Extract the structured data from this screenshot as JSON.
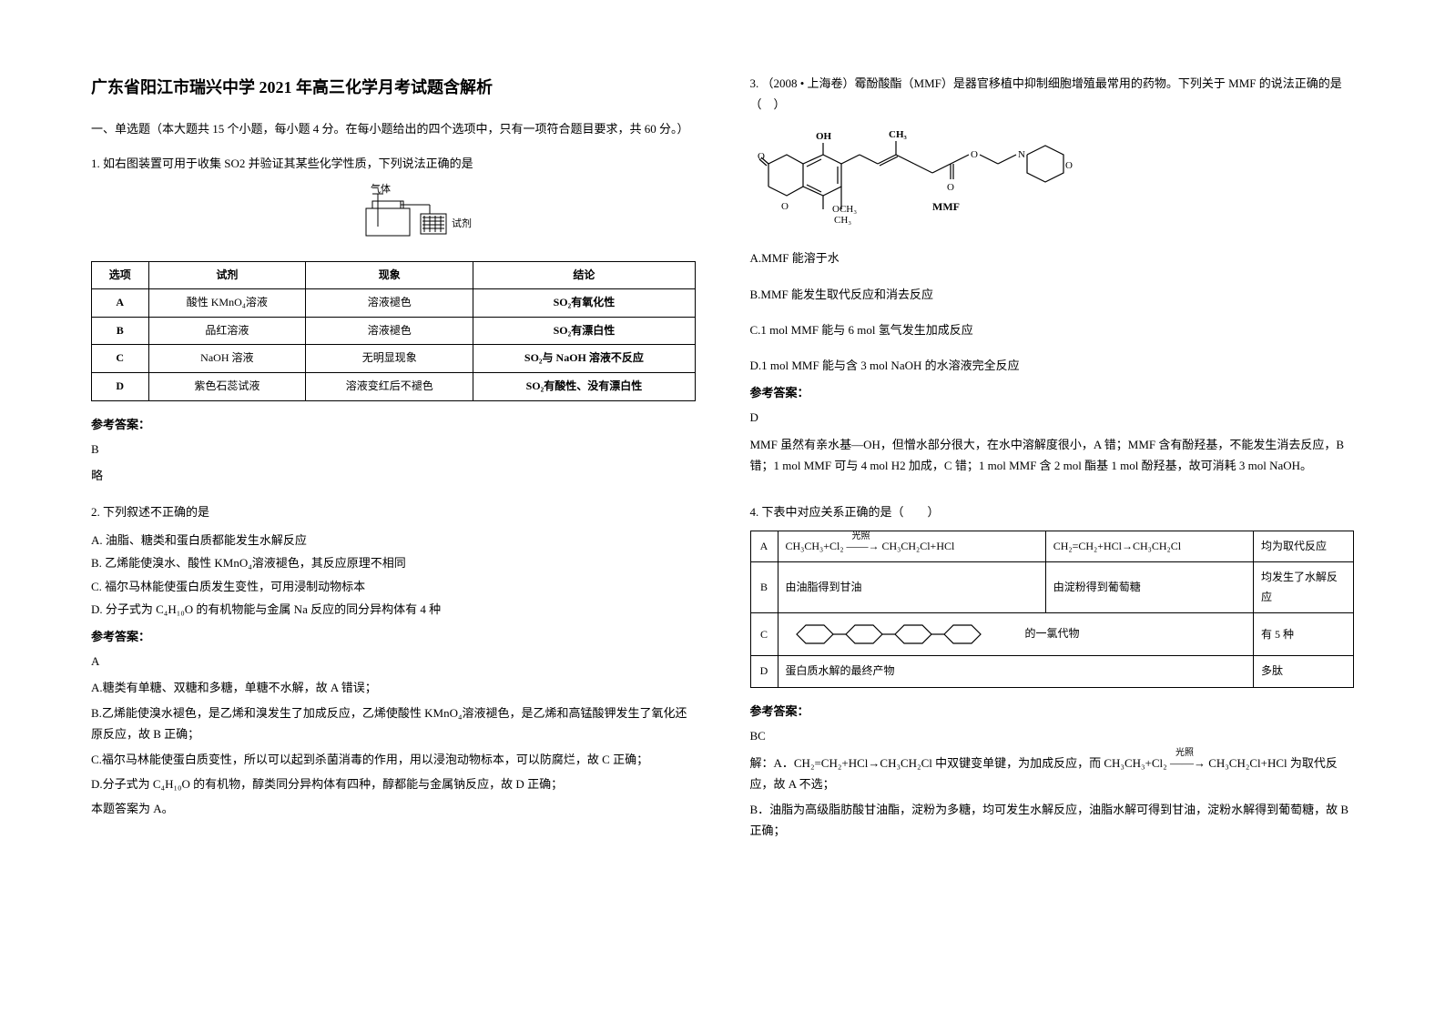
{
  "title": "广东省阳江市瑞兴中学 2021 年高三化学月考试题含解析",
  "section1_header": "一、单选题（本大题共 15 个小题，每小题 4 分。在每小题给出的四个选项中，只有一项符合题目要求，共 60 分。）",
  "q1": {
    "stem": "1. 如右图装置可用于收集 SO2 并验证其某些化学性质，下列说法正确的是",
    "fig_gas": "气体",
    "fig_reagent": "试剂",
    "table": {
      "headers": [
        "选项",
        "试剂",
        "现象",
        "结论"
      ],
      "rows": [
        [
          "A",
          "酸性 KMnO₄溶液",
          "溶液褪色",
          "SO₂有氧化性"
        ],
        [
          "B",
          "品红溶液",
          "溶液褪色",
          "SO₂有漂白性"
        ],
        [
          "C",
          "NaOH 溶液",
          "无明显现象",
          "SO₂与 NaOH 溶液不反应"
        ],
        [
          "D",
          "紫色石蕊试液",
          "溶液变红后不褪色",
          "SO₂有酸性、没有漂白性"
        ]
      ]
    },
    "ans_label": "参考答案：",
    "ans": "B",
    "brief": "略"
  },
  "q2": {
    "stem": "2. 下列叙述不正确的是",
    "opts": [
      "A. 油脂、糖类和蛋白质都能发生水解反应",
      "B. 乙烯能使溴水、酸性 KMnO₄溶液褪色，其反应原理不相同",
      "C. 福尔马林能使蛋白质发生变性，可用浸制动物标本",
      "D. 分子式为 C₄H₁₀O 的有机物能与金属 Na 反应的同分异构体有 4 种"
    ],
    "ans_label": "参考答案：",
    "ans": "A",
    "explains": [
      "A.糖类有单糖、双糖和多糖，单糖不水解，故 A 错误；",
      "B.乙烯能使溴水褪色，是乙烯和溴发生了加成反应，乙烯使酸性 KMnO₄溶液褪色，是乙烯和高锰酸钾发生了氧化还原反应，故 B 正确；",
      "C.福尔马林能使蛋白质变性，所以可以起到杀菌消毒的作用，用以浸泡动物标本，可以防腐烂，故 C 正确；",
      "D.分子式为 C₄H₁₀O 的有机物，醇类同分异构体有四种，醇都能与金属钠反应，故 D 正确；",
      "本题答案为 A。"
    ]
  },
  "q3": {
    "stem": "3. （2008 • 上海卷）霉酚酸酯（MMF）是器官移植中抑制细胞增殖最常用的药物。下列关于 MMF 的说法正确的是（　）",
    "mol_labels": {
      "oh": "OH",
      "ch3a": "CH₃",
      "och3": "OCH₃",
      "ch3b": "CH₃",
      "mmf": "MMF",
      "o": "O",
      "n": "N"
    },
    "opts": [
      "A.MMF 能溶于水",
      "B.MMF 能发生取代反应和消去反应",
      "C.1 mol MMF 能与 6 mol 氢气发生加成反应",
      "D.1 mol MMF 能与含 3 mol NaOH 的水溶液完全反应"
    ],
    "ans_label": "参考答案：",
    "ans": "D",
    "explain": "MMF 虽然有亲水基—OH，但憎水部分很大，在水中溶解度很小，A 错；MMF 含有酚羟基，不能发生消去反应，B 错；1 mol MMF 可与 4 mol H2 加成，C 错；1 mol MMF 含 2 mol 酯基 1 mol 酚羟基，故可消耗 3 mol NaOH。"
  },
  "q4": {
    "stem": "4. 下表中对应关系正确的是（　　）",
    "rows": [
      {
        "k": "A",
        "c1_html": "CH₃CH₃+Cl₂ <span style='position:relative'><span style='font-size:10px;position:absolute;top:-12px;left:6px;white-space:nowrap'>光照</span>——→</span> CH₃CH₂Cl+HCl",
        "c2": "CH₂=CH₂+HCl→CH₃CH₂Cl",
        "c3": "均为取代反应"
      },
      {
        "k": "B",
        "c1": "由油脂得到甘油",
        "c2": "由淀粉得到葡萄糖",
        "c3": "均发生了水解反应"
      },
      {
        "k": "C",
        "c1_svg": true,
        "c2": " 的一氯代物",
        "c3": "有 5 种"
      },
      {
        "k": "D",
        "c1": "蛋白质水解的最终产物",
        "c2": "",
        "c3": "多肽"
      }
    ],
    "ans_label": "参考答案：",
    "ans": "BC",
    "explains": [
      "解：A．CH₂=CH₂+HCl→CH₃CH₂Cl 中双键变单键，为加成反应，而 CH₃CH₃+Cl₂ <span style='position:relative'><span style='font-size:10px;position:absolute;top:-12px;left:6px;white-space:nowrap'>光照</span>——→</span> CH₃CH₂Cl+HCl 为取代反应，故 A 不选；",
      "B．油脂为高级脂肪酸甘油酯，淀粉为多糖，均可发生水解反应，油脂水解可得到甘油，淀粉水解得到葡萄糖，故 B 正确；"
    ]
  },
  "colors": {
    "text": "#000000",
    "border": "#000000",
    "bg": "#ffffff"
  }
}
